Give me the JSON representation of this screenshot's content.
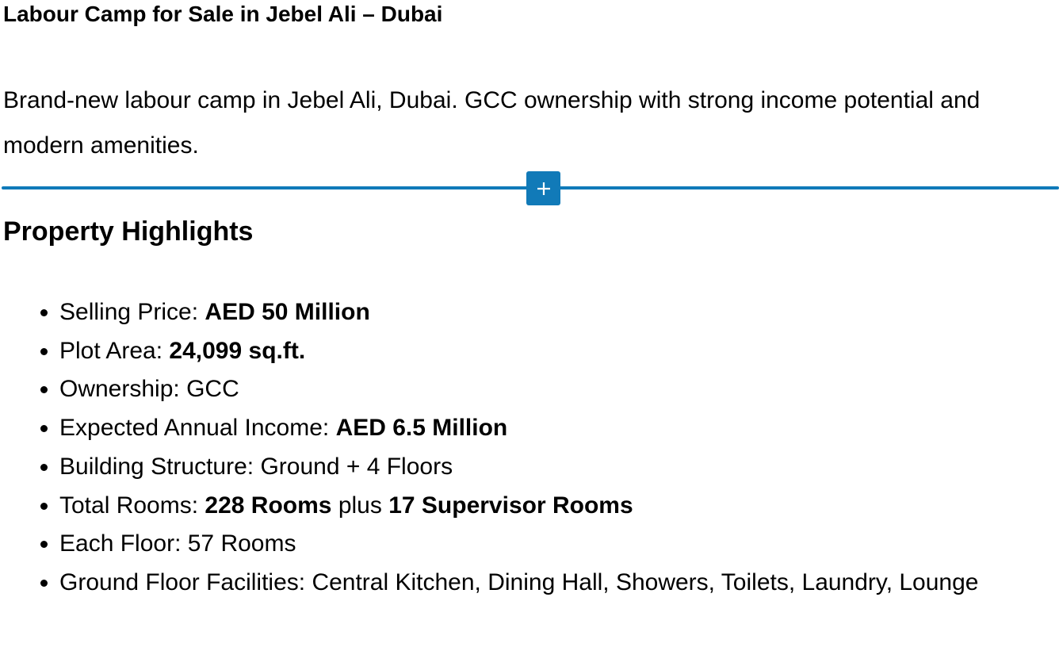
{
  "title": "Labour Camp for Sale in Jebel Ali – Dubai",
  "intro": "Brand-new labour camp in Jebel Ali, Dubai. GCC ownership with strong income potential and modern amenities.",
  "inserter": {
    "icon": "plus-icon",
    "color": "#0f7ab9"
  },
  "highlights_heading": "Property Highlights",
  "highlights": [
    {
      "label": "Selling Price: ",
      "b1": "AED 50 Million"
    },
    {
      "label": "Plot Area: ",
      "b1": "24,099 sq.ft."
    },
    {
      "label": "Ownership: GCC"
    },
    {
      "label": "Expected Annual Income: ",
      "b1": "AED 6.5 Million"
    },
    {
      "label": "Building Structure: Ground + 4 Floors"
    },
    {
      "label": "Total Rooms: ",
      "b1": "228 Rooms",
      "mid": " plus ",
      "b2": "17 Supervisor Rooms"
    },
    {
      "label": "Each Floor: 57 Rooms"
    },
    {
      "label": "Ground Floor Facilities: Central Kitchen, Dining Hall, Showers, Toilets, Laundry, Lounge"
    }
  ]
}
